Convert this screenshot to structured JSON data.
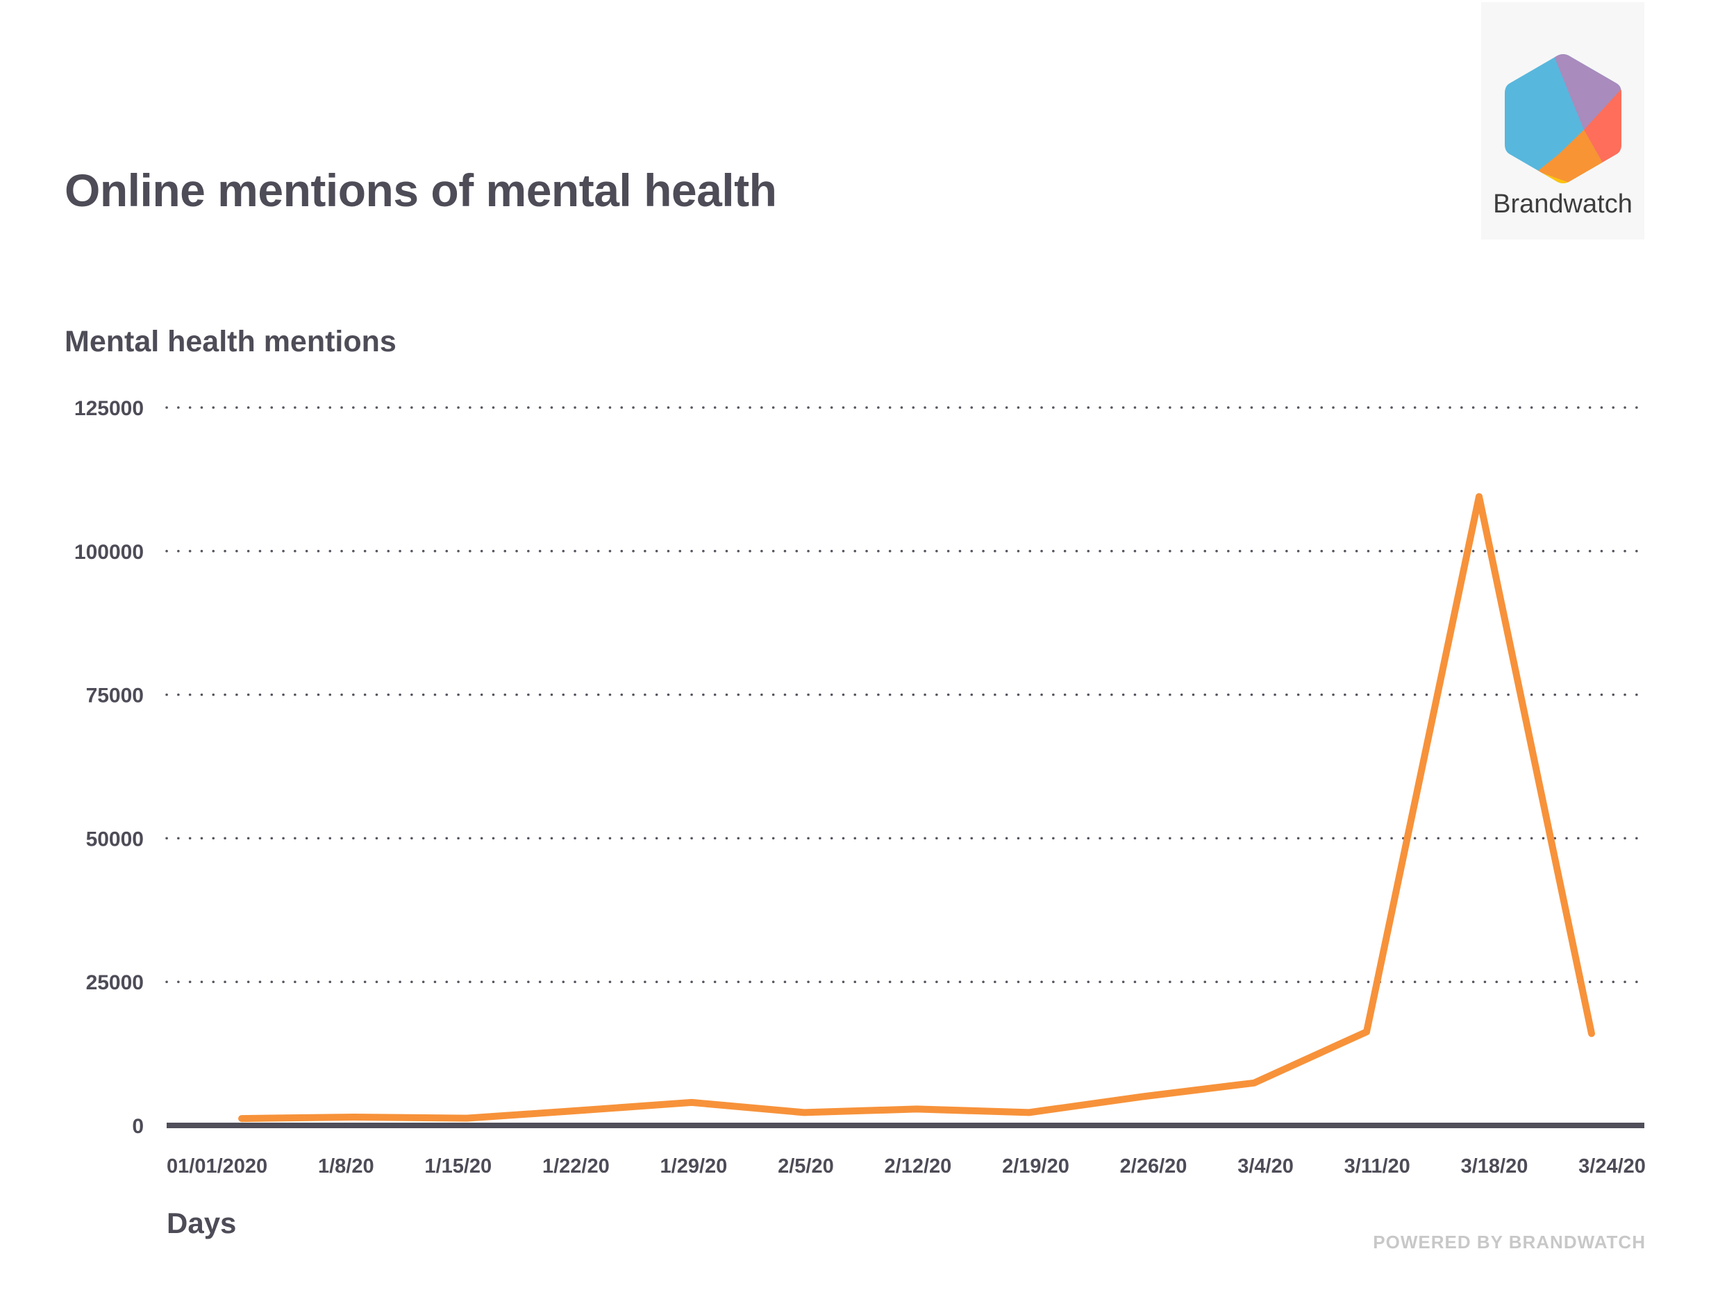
{
  "header": {
    "title": "Online mentions of mental health",
    "subtitle": "Mental health mentions"
  },
  "logo": {
    "icon": "brandwatch-hexagon-icon",
    "wordmark": "Brandwatch",
    "colors": {
      "blue": "#58b7dd",
      "purple": "#a98bbd",
      "red": "#ff6e5a",
      "orange": "#f89434",
      "yellow": "#ffc20e",
      "green": "#8cc43f"
    }
  },
  "footer": {
    "xaxis_title": "Days",
    "powered_by": "POWERED BY BRANDWATCH"
  },
  "colors": {
    "line": "#f7923a",
    "axis": "#4f4e59",
    "text": "#4d4c57",
    "grid": "#55545e"
  },
  "chart_data": {
    "type": "line",
    "title": "Online mentions of mental health",
    "ylabel": "Mental health mentions",
    "xlabel": "Days",
    "x": [
      "01/01/2020",
      "1/8/20",
      "1/15/20",
      "1/22/20",
      "1/29/20",
      "2/5/20",
      "2/12/20",
      "2/19/20",
      "2/26/20",
      "3/4/20",
      "3/11/20",
      "3/18/20",
      "3/24/20"
    ],
    "series": [
      {
        "name": "Mental health mentions",
        "values": [
          1200,
          1450,
          1250,
          2600,
          4000,
          2250,
          2850,
          2250,
          5000,
          7400,
          16300,
          109500,
          16000
        ]
      }
    ],
    "yticks": [
      0,
      25000,
      50000,
      75000,
      100000,
      125000
    ],
    "ylim": [
      0,
      125000
    ],
    "grid": true,
    "grid_style": "dotted",
    "legend": "none"
  }
}
